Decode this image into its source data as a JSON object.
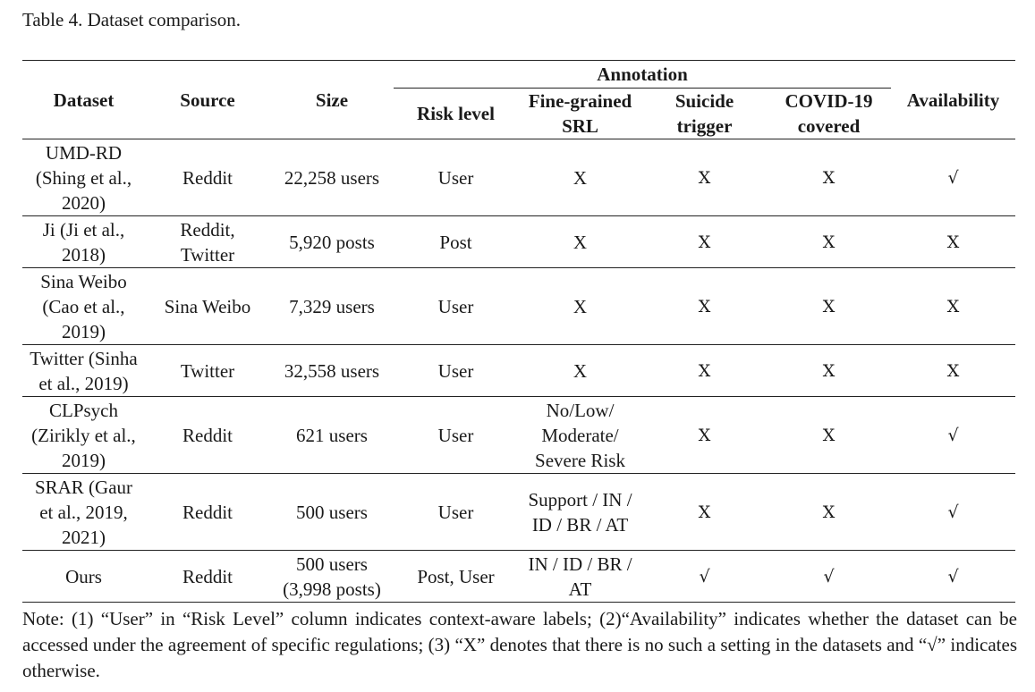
{
  "caption": "Table 4. Dataset comparison.",
  "headers": {
    "dataset": "Dataset",
    "source": "Source",
    "size": "Size",
    "annotation": "Annotation",
    "risk_level": "Risk level",
    "fine_grained_1": "Fine-grained",
    "fine_grained_2": "SRL",
    "suicide_1": "Suicide",
    "suicide_2": "trigger",
    "covid_1": "COVID-19",
    "covid_2": "covered",
    "availability": "Availability"
  },
  "rows": [
    {
      "dataset": [
        "UMD-RD",
        "(Shing et al.,",
        "2020)"
      ],
      "source": [
        "Reddit"
      ],
      "size": [
        "22,258 users"
      ],
      "risk": "User",
      "fine": [
        "X"
      ],
      "trigger": "X",
      "covid": "X",
      "availability": "√"
    },
    {
      "dataset": [
        "Ji (Ji et al.,",
        "2018)"
      ],
      "source": [
        "Reddit,",
        "Twitter"
      ],
      "size": [
        "5,920 posts"
      ],
      "risk": "Post",
      "fine": [
        "X"
      ],
      "trigger": "X",
      "covid": "X",
      "availability": "X"
    },
    {
      "dataset": [
        "Sina Weibo",
        "(Cao et al.,",
        "2019)"
      ],
      "source": [
        "Sina Weibo"
      ],
      "size": [
        "7,329 users"
      ],
      "risk": "User",
      "fine": [
        "X"
      ],
      "trigger": "X",
      "covid": "X",
      "availability": "X"
    },
    {
      "dataset": [
        "Twitter (Sinha",
        "et al., 2019)"
      ],
      "source": [
        "Twitter"
      ],
      "size": [
        "32,558 users"
      ],
      "risk": "User",
      "fine": [
        "X"
      ],
      "trigger": "X",
      "covid": "X",
      "availability": "X"
    },
    {
      "dataset": [
        "CLPsych",
        "(Zirikly et al.,",
        "2019)"
      ],
      "source": [
        "Reddit"
      ],
      "size": [
        "621 users"
      ],
      "risk": "User",
      "fine": [
        "No/Low/",
        "Moderate/",
        "Severe Risk"
      ],
      "trigger": "X",
      "covid": "X",
      "availability": "√"
    },
    {
      "dataset": [
        "SRAR (Gaur",
        "et al., 2019,",
        "2021)"
      ],
      "source": [
        "Reddit"
      ],
      "size": [
        "500 users"
      ],
      "risk": "User",
      "fine": [
        "Support / IN /",
        "ID / BR / AT"
      ],
      "trigger": "X",
      "covid": "X",
      "availability": "√"
    },
    {
      "dataset": [
        "Ours"
      ],
      "source": [
        "Reddit"
      ],
      "size": [
        "500 users",
        "(3,998 posts)"
      ],
      "risk": "Post, User",
      "fine": [
        "IN / ID / BR /",
        "AT"
      ],
      "trigger": "√",
      "covid": "√",
      "availability": "√"
    }
  ],
  "note": "Note: (1) “User” in “Risk Level” column indicates context-aware labels; (2)“Availability” indicates whether the dataset can be accessed under the agreement of specific regulations; (3) “X” denotes that there is no such a setting in the datasets and “√” indicates otherwise."
}
